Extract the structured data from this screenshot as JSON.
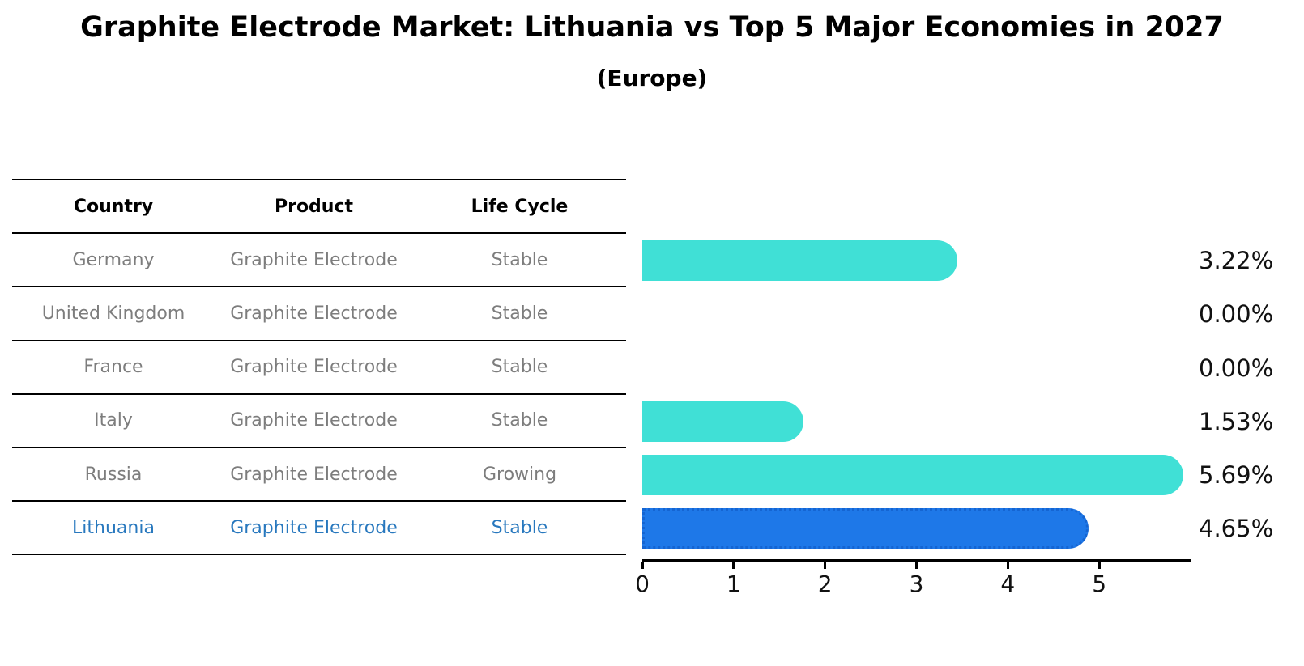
{
  "title": "Graphite Electrode Market: Lithuania vs Top 5 Major Economies in 2027",
  "subtitle": "(Europe)",
  "table": {
    "headers": [
      "Country",
      "Product",
      "Life Cycle"
    ],
    "rows": [
      {
        "country": "Germany",
        "product": "Graphite Electrode",
        "life_cycle": "Stable",
        "highlight": false
      },
      {
        "country": "United Kingdom",
        "product": "Graphite Electrode",
        "life_cycle": "Stable",
        "highlight": false
      },
      {
        "country": "France",
        "product": "Graphite Electrode",
        "life_cycle": "Stable",
        "highlight": false
      },
      {
        "country": "Italy",
        "product": "Graphite Electrode",
        "life_cycle": "Stable",
        "highlight": false
      },
      {
        "country": "Russia",
        "product": "Graphite Electrode",
        "life_cycle": "Growing",
        "highlight": false
      },
      {
        "country": "Lithuania",
        "product": "Graphite Electrode",
        "life_cycle": "Stable",
        "highlight": true
      }
    ]
  },
  "chart_data": {
    "type": "bar",
    "orientation": "horizontal",
    "title": "Graphite Electrode Market: Lithuania vs Top 5 Major Economies in 2027",
    "subtitle": "(Europe)",
    "categories": [
      "Germany",
      "United Kingdom",
      "France",
      "Italy",
      "Russia",
      "Lithuania"
    ],
    "values": [
      3.22,
      0.0,
      0.0,
      1.53,
      5.69,
      4.65
    ],
    "value_labels": [
      "3.22%",
      "0.00%",
      "0.00%",
      "1.53%",
      "5.69%",
      "4.65%"
    ],
    "xlabel": "",
    "ylabel": "",
    "xticks": [
      "0",
      "1",
      "2",
      "3",
      "4",
      "5"
    ],
    "xlim": [
      0,
      6
    ],
    "grid": false,
    "legend": false,
    "highlight_index": 5
  },
  "colors": {
    "bar": "#40E0D6",
    "highlight_bar": "#1E78E8",
    "highlight_bar_border": "#1565d2",
    "highlight_text": "#2878be",
    "table_text": "#7d7d7d",
    "header_text": "#000000",
    "axis": "#000000"
  }
}
